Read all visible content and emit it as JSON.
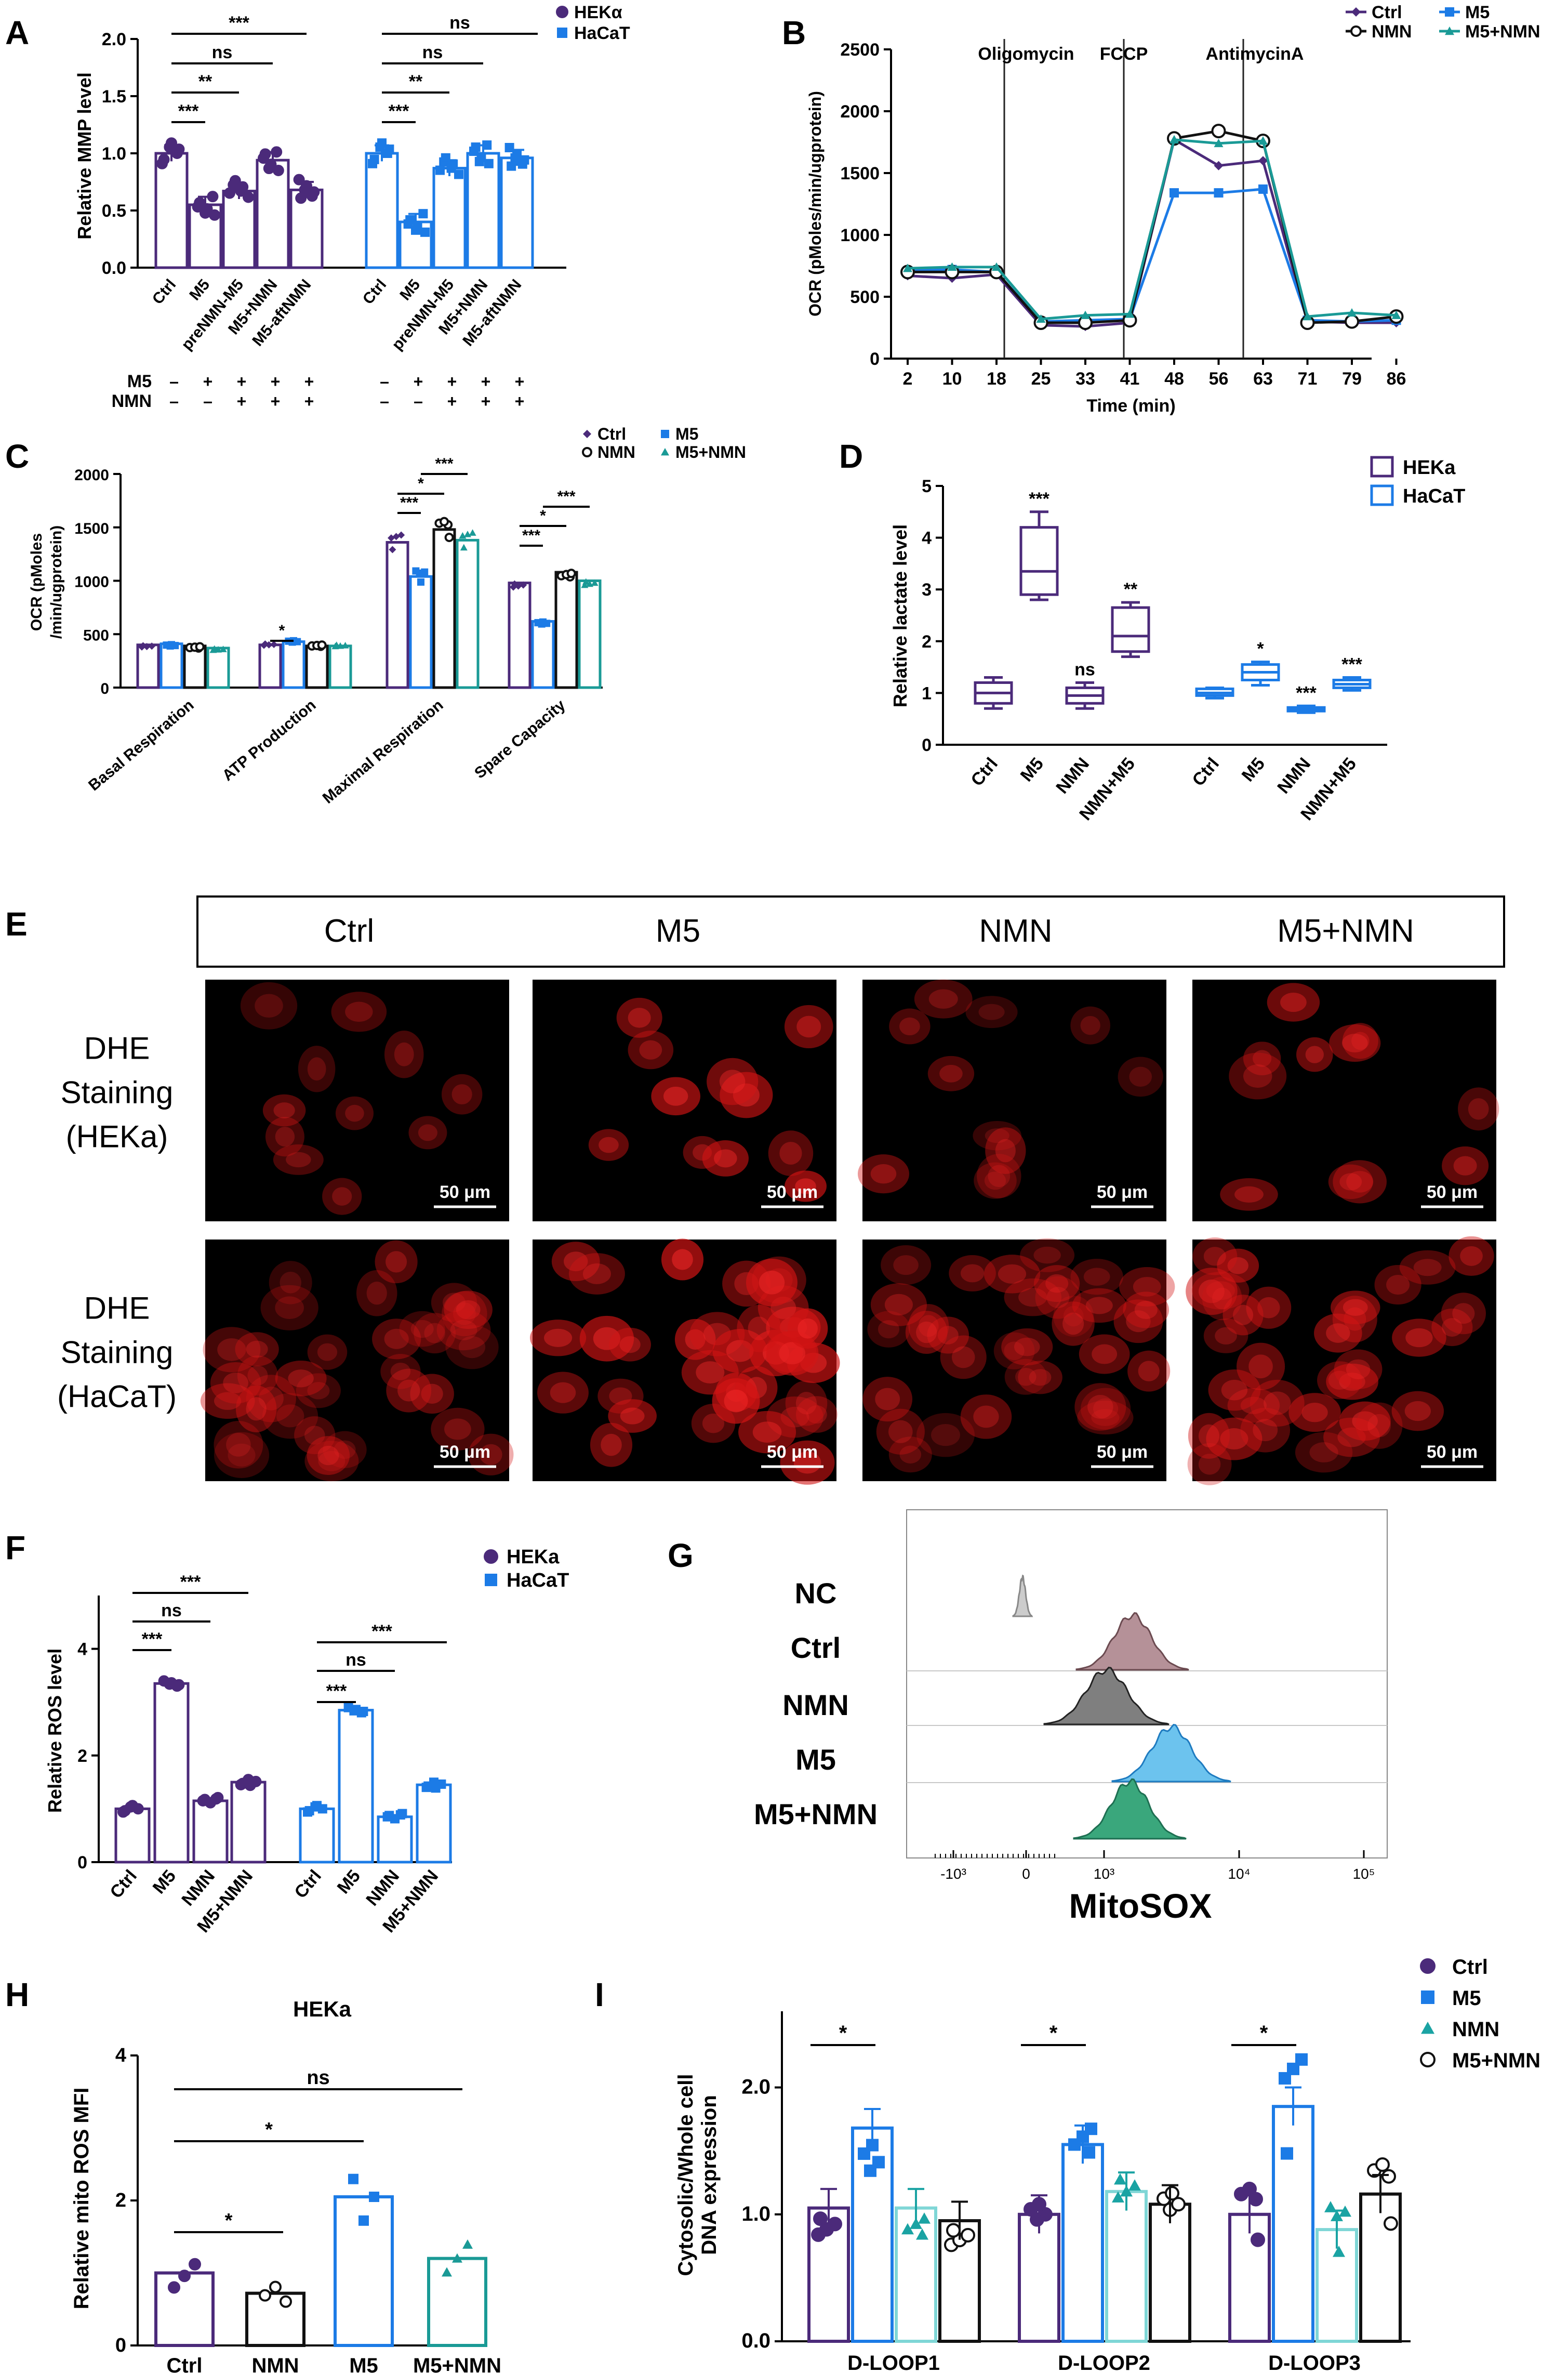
{
  "colors": {
    "hek": "#4b2a7a",
    "hacat": "#1c7be6",
    "nmn": "#111111",
    "m5nmn": "#1a9a96",
    "green": "#2c9a76",
    "blueMid": "#2f95e0"
  },
  "panels": {
    "A": {
      "letter": "A",
      "chart_data": {
        "type": "bar",
        "ylabel": "Relative MMP level",
        "ylim": [
          0,
          2.0
        ],
        "yticks": [
          "0.0",
          "0.5",
          "1.0",
          "1.5",
          "2.0"
        ],
        "legend": [
          "HEKα",
          "HaCaT"
        ],
        "categories": [
          "Ctrl",
          "M5",
          "preNMN-M5",
          "M5+NMN",
          "M5-aftNMN"
        ],
        "series": [
          {
            "name": "HEKα",
            "values": [
              1.0,
              0.55,
              0.67,
              0.94,
              0.68
            ]
          },
          {
            "name": "HaCaT",
            "values": [
              1.0,
              0.4,
              0.87,
              1.0,
              0.96
            ]
          }
        ],
        "treatment_table": {
          "rows": [
            "M5",
            "NMN"
          ],
          "signs": [
            [
              "–",
              "+",
              "+",
              "+",
              "+",
              "–",
              "+",
              "+",
              "+",
              "+"
            ],
            [
              "–",
              "–",
              "+",
              "+",
              "+",
              "–",
              "–",
              "+",
              "+",
              "+"
            ]
          ]
        },
        "significance": [
          {
            "label": "***"
          },
          {
            "label": "ns"
          },
          {
            "label": "**"
          },
          {
            "label": "***"
          },
          {
            "label": "ns"
          },
          {
            "label": "ns"
          },
          {
            "label": "**"
          },
          {
            "label": "***"
          }
        ]
      }
    },
    "B": {
      "letter": "B",
      "chart_data": {
        "type": "line",
        "xlabel": "Time (min)",
        "ylabel": "OCR (pMoles/min/ugprotein)",
        "ylim": [
          0,
          2500
        ],
        "yticks": [
          "0",
          "500",
          "1000",
          "1500",
          "2000",
          "2500"
        ],
        "x": [
          2,
          10,
          18,
          25,
          33,
          41,
          48,
          56,
          63,
          71,
          79,
          86
        ],
        "injections": [
          "Oligomycin",
          "FCCP",
          "AntimycinA"
        ],
        "legend": [
          "Ctrl",
          "M5",
          "NMN",
          "M5+NMN"
        ],
        "series": [
          {
            "name": "Ctrl",
            "values": [
              670,
              650,
              680,
              270,
              260,
              290,
              1770,
              1560,
              1600,
              300,
              290,
              290
            ]
          },
          {
            "name": "M5",
            "values": [
              710,
              720,
              700,
              300,
              310,
              320,
              1340,
              1340,
              1370,
              310,
              300,
              310
            ]
          },
          {
            "name": "NMN",
            "values": [
              700,
              700,
              700,
              290,
              290,
              310,
              1780,
              1840,
              1760,
              290,
              300,
              340
            ]
          },
          {
            "name": "M5+NMN",
            "values": [
              730,
              740,
              740,
              320,
              350,
              360,
              1770,
              1740,
              1760,
              340,
              370,
              350
            ]
          }
        ]
      }
    },
    "C": {
      "letter": "C",
      "chart_data": {
        "type": "bar",
        "ylabel1": "OCR (pMoles",
        "ylabel2": "/min/ugprotein)",
        "ylim": [
          0,
          2000
        ],
        "yticks": [
          "0",
          "500",
          "1000",
          "1500",
          "2000"
        ],
        "categories": [
          "Basal Respiration",
          "ATP Production",
          "Maximal Respiration",
          "Spare Capacity"
        ],
        "legend": [
          "Ctrl",
          "M5",
          "NMN",
          "M5+NMN"
        ],
        "series": [
          {
            "name": "Ctrl",
            "values": [
              400,
              400,
              1360,
              980
            ]
          },
          {
            "name": "M5",
            "values": [
              410,
              430,
              1040,
              620
            ]
          },
          {
            "name": "NMN",
            "values": [
              390,
              390,
              1480,
              1080
            ]
          },
          {
            "name": "M5+NMN",
            "values": [
              370,
              390,
              1380,
              1000
            ]
          }
        ],
        "significance": [
          "*",
          "***",
          "*",
          "***",
          "***",
          "*",
          "***"
        ]
      }
    },
    "D": {
      "letter": "D",
      "chart_data": {
        "type": "box",
        "ylabel": "Relative lactate level",
        "ylim": [
          0,
          5
        ],
        "yticks": [
          "0",
          "1",
          "2",
          "3",
          "4",
          "5"
        ],
        "legend": [
          "HEKa",
          "HaCaT"
        ],
        "categories": [
          "Ctrl",
          "M5",
          "NMN",
          "NMN+M5",
          "Ctrl",
          "M5",
          "NMN",
          "NMN+M5"
        ],
        "boxes": [
          {
            "min": 0.7,
            "q1": 0.8,
            "med": 1.0,
            "q3": 1.2,
            "max": 1.3
          },
          {
            "min": 2.8,
            "q1": 2.9,
            "med": 3.35,
            "q3": 4.2,
            "max": 4.5
          },
          {
            "min": 0.7,
            "q1": 0.8,
            "med": 0.95,
            "q3": 1.1,
            "max": 1.2
          },
          {
            "min": 1.7,
            "q1": 1.8,
            "med": 2.1,
            "q3": 2.65,
            "max": 2.75
          },
          {
            "min": 0.9,
            "q1": 0.95,
            "med": 1.0,
            "q3": 1.08,
            "max": 1.1
          },
          {
            "min": 1.15,
            "q1": 1.25,
            "med": 1.4,
            "q3": 1.55,
            "max": 1.6
          },
          {
            "min": 0.62,
            "q1": 0.65,
            "med": 0.68,
            "q3": 0.72,
            "max": 0.75
          },
          {
            "min": 1.05,
            "q1": 1.1,
            "med": 1.17,
            "q3": 1.25,
            "max": 1.3
          }
        ],
        "significance": [
          "***",
          "ns",
          "**",
          "*",
          "***",
          "***"
        ]
      }
    },
    "E": {
      "letter": "E",
      "columns": [
        "Ctrl",
        "M5",
        "NMN",
        "M5+NMN"
      ],
      "rows": [
        {
          "line1": "DHE",
          "line2": "Staining",
          "line3": "(HEKa)"
        },
        {
          "line1": "DHE",
          "line2": "Staining",
          "line3": "(HaCaT)"
        }
      ],
      "scale_bar": "50 μm"
    },
    "F": {
      "letter": "F",
      "chart_data": {
        "type": "bar",
        "ylabel": "Relative ROS level",
        "ylim": [
          0,
          5
        ],
        "yticks": [
          "0",
          "2",
          "4"
        ],
        "legend": [
          "HEKa",
          "HaCaT"
        ],
        "categories": [
          "Ctrl",
          "M5",
          "NMN",
          "M5+NMN"
        ],
        "series": [
          {
            "name": "HEKa",
            "values": [
              1.0,
              3.35,
              1.15,
              1.5
            ]
          },
          {
            "name": "HaCaT",
            "values": [
              1.0,
              2.85,
              0.85,
              1.45
            ]
          }
        ],
        "significance": [
          "***",
          "ns",
          "***",
          "***",
          "ns",
          "***"
        ]
      }
    },
    "G": {
      "letter": "G",
      "xlabel": "MitoSOX",
      "rows": [
        "NC",
        "Ctrl",
        "NMN",
        "M5",
        "M5+NMN"
      ],
      "ticks": [
        "-10³",
        "0",
        "10³",
        "10⁴",
        "10⁵"
      ]
    },
    "H": {
      "letter": "H",
      "chart_data": {
        "type": "bar",
        "title": "HEKa",
        "ylabel": "Relative mito ROS MFI",
        "ylim": [
          0,
          4
        ],
        "yticks": [
          "0",
          "2",
          "4"
        ],
        "categories": [
          "Ctrl",
          "NMN",
          "M5",
          "M5+NMN"
        ],
        "values": [
          1.0,
          0.72,
          2.05,
          1.2
        ],
        "significance": [
          "*",
          "*",
          "ns"
        ]
      }
    },
    "I": {
      "letter": "I",
      "chart_data": {
        "type": "bar",
        "ylabel1": "Cytosolic/Whole cell",
        "ylabel2": "DNA expression",
        "ylim": [
          0,
          2.6
        ],
        "yticks": [
          "0.0",
          "1.0",
          "2.0"
        ],
        "categories": [
          "D-LOOP1",
          "D-LOOP2",
          "D-LOOP3"
        ],
        "legend": [
          "Ctrl",
          "M5",
          "NMN",
          "M5+NMN"
        ],
        "series": [
          {
            "name": "Ctrl",
            "values": [
              1.05,
              1.0,
              1.0
            ]
          },
          {
            "name": "M5",
            "values": [
              1.68,
              1.55,
              1.85
            ]
          },
          {
            "name": "NMN",
            "values": [
              1.05,
              1.18,
              0.88
            ]
          },
          {
            "name": "M5+NMN",
            "values": [
              0.95,
              1.08,
              1.16
            ]
          }
        ],
        "significance": [
          "*",
          "*",
          "*"
        ]
      }
    }
  }
}
